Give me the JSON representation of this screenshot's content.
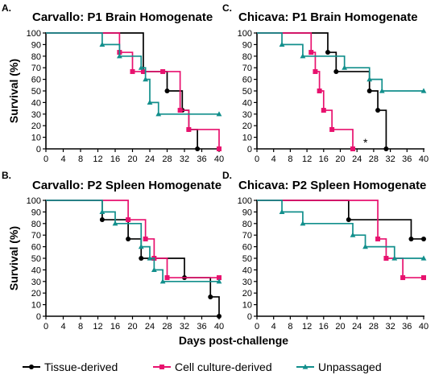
{
  "figure": {
    "shared_ylabel": "Survival (%)",
    "shared_xlabel": "Days post-challenge"
  },
  "legend": [
    {
      "name": "Tissue-derived",
      "color": "#000000",
      "marker": "circle"
    },
    {
      "name": "Cell culture-derived",
      "color": "#e8116e",
      "marker": "square"
    },
    {
      "name": "Unpassaged",
      "color": "#128f8c",
      "marker": "triangle"
    }
  ],
  "chart_data": [
    {
      "type": "line",
      "panel": "A.",
      "title": "Carvallo: P1 Brain Homogenate",
      "ylabel": "Survival (%)",
      "xlabel": "",
      "xlim": [
        0,
        40
      ],
      "ylim": [
        0,
        100
      ],
      "xticks": [
        0,
        4,
        8,
        12,
        16,
        20,
        24,
        28,
        32,
        36,
        40
      ],
      "yticks": [
        0,
        10,
        20,
        30,
        40,
        50,
        60,
        70,
        80,
        90,
        100
      ],
      "annotations": [],
      "series": [
        {
          "name": "Tissue-derived",
          "color": "#000000",
          "marker": "circle",
          "steps": [
            [
              0,
              100
            ],
            [
              22.5,
              66.7
            ],
            [
              28,
              50
            ],
            [
              31.5,
              33.3
            ],
            [
              33,
              16.7
            ],
            [
              35,
              0
            ]
          ]
        },
        {
          "name": "Cell culture-derived",
          "color": "#e8116e",
          "marker": "square",
          "steps": [
            [
              0,
              100
            ],
            [
              17,
              83.3
            ],
            [
              20,
              66.7
            ],
            [
              22.5,
              66.7
            ],
            [
              27,
              66.7
            ],
            [
              31,
              33.3
            ],
            [
              33,
              16.7
            ],
            [
              40,
              0
            ]
          ]
        },
        {
          "name": "Unpassaged",
          "color": "#128f8c",
          "marker": "triangle",
          "steps": [
            [
              0,
              100
            ],
            [
              13,
              90
            ],
            [
              17,
              80
            ],
            [
              22,
              70
            ],
            [
              23,
              60
            ],
            [
              24,
              40
            ],
            [
              26,
              30
            ],
            [
              40,
              30
            ]
          ]
        }
      ]
    },
    {
      "type": "line",
      "panel": "C.",
      "title": "Chicava: P1 Brain Homogenate",
      "ylabel": "",
      "xlabel": "",
      "xlim": [
        0,
        40
      ],
      "ylim": [
        0,
        100
      ],
      "xticks": [
        0,
        4,
        8,
        12,
        16,
        20,
        24,
        28,
        32,
        36,
        40
      ],
      "yticks": [
        0,
        10,
        20,
        30,
        40,
        50,
        60,
        70,
        80,
        90,
        100
      ],
      "annotations": [
        "*"
      ],
      "series": [
        {
          "name": "Tissue-derived",
          "color": "#000000",
          "marker": "circle",
          "steps": [
            [
              0,
              100
            ],
            [
              17,
              83.3
            ],
            [
              19,
              66.7
            ],
            [
              27,
              50
            ],
            [
              29,
              33.3
            ],
            [
              31,
              0
            ]
          ]
        },
        {
          "name": "Cell culture-derived",
          "color": "#e8116e",
          "marker": "square",
          "steps": [
            [
              0,
              100
            ],
            [
              13,
              83.3
            ],
            [
              14,
              66.7
            ],
            [
              15,
              50
            ],
            [
              16,
              33.3
            ],
            [
              18,
              16.7
            ],
            [
              23,
              0
            ]
          ]
        },
        {
          "name": "Unpassaged",
          "color": "#128f8c",
          "marker": "triangle",
          "steps": [
            [
              0,
              100
            ],
            [
              6,
              90
            ],
            [
              11,
              80
            ],
            [
              21,
              70
            ],
            [
              27,
              60
            ],
            [
              30,
              50
            ],
            [
              40,
              50
            ]
          ]
        }
      ]
    },
    {
      "type": "line",
      "panel": "B.",
      "title": "Carvallo: P2 Spleen Homogenate",
      "ylabel": "Survival (%)",
      "xlabel": "",
      "xlim": [
        0,
        40
      ],
      "ylim": [
        0,
        100
      ],
      "xticks": [
        0,
        4,
        8,
        12,
        16,
        20,
        24,
        28,
        32,
        36,
        40
      ],
      "yticks": [
        0,
        10,
        20,
        30,
        40,
        50,
        60,
        70,
        80,
        90,
        100
      ],
      "annotations": [],
      "series": [
        {
          "name": "Tissue-derived",
          "color": "#000000",
          "marker": "circle",
          "steps": [
            [
              0,
              100
            ],
            [
              13,
              83.3
            ],
            [
              19,
              66.7
            ],
            [
              22,
              50
            ],
            [
              32,
              33.3
            ],
            [
              38,
              16.7
            ],
            [
              40,
              0
            ]
          ]
        },
        {
          "name": "Cell culture-derived",
          "color": "#e8116e",
          "marker": "square",
          "steps": [
            [
              0,
              100
            ],
            [
              19,
              83.3
            ],
            [
              23,
              66.7
            ],
            [
              25,
              50
            ],
            [
              28,
              33.3
            ],
            [
              40,
              33.3
            ]
          ]
        },
        {
          "name": "Unpassaged",
          "color": "#128f8c",
          "marker": "triangle",
          "steps": [
            [
              0,
              100
            ],
            [
              13,
              90
            ],
            [
              16,
              80
            ],
            [
              22,
              60
            ],
            [
              24,
              50
            ],
            [
              25,
              40
            ],
            [
              27,
              30
            ],
            [
              40,
              30
            ]
          ]
        }
      ]
    },
    {
      "type": "line",
      "panel": "D.",
      "title": "Chicava: P2 Spleen Homogenate",
      "ylabel": "",
      "xlabel": "Days post-challenge",
      "xlim": [
        0,
        40
      ],
      "ylim": [
        0,
        100
      ],
      "xticks": [
        0,
        4,
        8,
        12,
        16,
        20,
        24,
        28,
        32,
        36,
        40
      ],
      "yticks": [
        0,
        10,
        20,
        30,
        40,
        50,
        60,
        70,
        80,
        90,
        100
      ],
      "annotations": [],
      "series": [
        {
          "name": "Tissue-derived",
          "color": "#000000",
          "marker": "circle",
          "steps": [
            [
              0,
              100
            ],
            [
              22,
              83.3
            ],
            [
              37,
              66.7
            ],
            [
              40,
              66.7
            ]
          ]
        },
        {
          "name": "Cell culture-derived",
          "color": "#e8116e",
          "marker": "square",
          "steps": [
            [
              0,
              100
            ],
            [
              29,
              66.7
            ],
            [
              31,
              50
            ],
            [
              35,
              33.3
            ],
            [
              40,
              33.3
            ]
          ]
        },
        {
          "name": "Unpassaged",
          "color": "#128f8c",
          "marker": "triangle",
          "steps": [
            [
              0,
              100
            ],
            [
              6,
              90
            ],
            [
              11,
              80
            ],
            [
              23,
              70
            ],
            [
              26,
              60
            ],
            [
              33,
              50
            ],
            [
              40,
              50
            ]
          ]
        }
      ]
    }
  ]
}
